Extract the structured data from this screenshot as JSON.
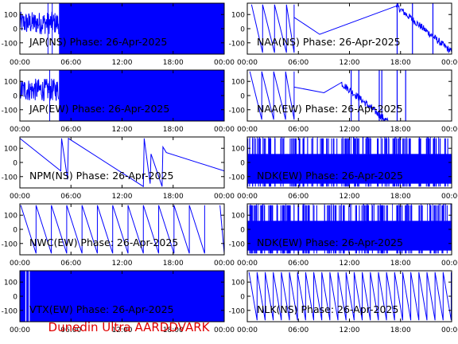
{
  "footer": "Dunedin Ultra AARDDVARK",
  "colors": {
    "trace": "#0000ff",
    "frame": "#000000",
    "label": "#000000",
    "footer": "#e00000"
  },
  "chart_data": [
    {
      "type": "line",
      "title": "JAP(NS) Phase: 26-Apr-2025",
      "ylim": [
        -180,
        180
      ],
      "yticks": [
        100,
        0,
        -100
      ],
      "xticks": [
        "00:00",
        "06:00",
        "12:00",
        "18:00",
        "00:00"
      ],
      "series": [
        {
          "name": "",
          "pattern": "noisy_then_saturated",
          "saturate_from_hour": 4.6,
          "spikes": [
            3.3,
            3.8
          ]
        }
      ]
    },
    {
      "type": "line",
      "title": "NAA(NS) Phase: 26-Apr-2025",
      "ylim": [
        -180,
        180
      ],
      "yticks": [
        100,
        0,
        -100
      ],
      "xticks": [
        "00:00",
        "06:00",
        "12:00",
        "18:00",
        "00:00"
      ],
      "series": [
        {
          "name": "",
          "pattern": "sawtooth_with_recovery",
          "wraps": [
            0.5,
            1.8,
            3.2,
            4.6
          ],
          "recovery": [
            [
              5.5,
              80
            ],
            [
              8.5,
              -40
            ],
            [
              17.5,
              160
            ]
          ],
          "tail": "noisy_decline",
          "vertical_lines": [
            17.6,
            19.4,
            21.8
          ]
        }
      ]
    },
    {
      "type": "line",
      "title": "JAP(EW) Phase: 26-Apr-2025",
      "ylim": [
        -180,
        180
      ],
      "yticks": [
        100,
        0,
        -100
      ],
      "xticks": [
        "00:00",
        "06:00",
        "12:00",
        "18:00",
        "00:00"
      ],
      "series": [
        {
          "name": "",
          "pattern": "noisy_then_saturated",
          "saturate_from_hour": 4.6,
          "spikes": [
            3.5
          ]
        }
      ]
    },
    {
      "type": "line",
      "title": "NAA(EW) Phase: 26-Apr-2025",
      "ylim": [
        -180,
        180
      ],
      "yticks": [
        100,
        0,
        -100
      ],
      "xticks": [
        "00:00",
        "06:00",
        "12:00",
        "18:00",
        "00:00"
      ],
      "series": [
        {
          "name": "",
          "pattern": "sawtooth_with_recovery",
          "wraps": [
            0.3,
            1.7,
            3.1,
            4.5
          ],
          "recovery": [
            [
              5.5,
              60
            ],
            [
              9,
              20
            ],
            [
              11,
              90
            ]
          ],
          "tail": "noisy_decline",
          "vertical_lines": [
            12.2,
            13.1,
            15.5,
            15.8,
            17.6,
            18.6
          ]
        }
      ]
    },
    {
      "type": "line",
      "title": "NPM(NS) Phase: 26-Apr-2025",
      "ylim": [
        -180,
        180
      ],
      "yticks": [
        100,
        0,
        -100
      ],
      "xticks": [
        "00:00",
        "06:00",
        "12:00",
        "18:00",
        "00:00"
      ],
      "series": [
        {
          "name": "",
          "pattern": "slow_drift",
          "points": [
            [
              0,
              170
            ],
            [
              4.8,
              -60
            ],
            [
              4.9,
              170
            ],
            [
              5.6,
              -120
            ],
            [
              5.7,
              170
            ],
            [
              14.5,
              -170
            ],
            [
              14.6,
              170
            ],
            [
              15.3,
              -150
            ],
            [
              15.4,
              60
            ],
            [
              16.7,
              -170
            ],
            [
              16.8,
              110
            ],
            [
              17.2,
              70
            ],
            [
              24,
              -60
            ]
          ]
        }
      ]
    },
    {
      "type": "line",
      "title": "NDK(EW) Phase: 26-Apr-2025",
      "ylim": [
        -180,
        180
      ],
      "yticks": [
        100,
        0,
        -100
      ],
      "xticks": [
        "00:00",
        "06:00",
        "12:00",
        "18:00",
        "00:00"
      ],
      "series": [
        {
          "name": "",
          "pattern": "dense_noise"
        }
      ]
    },
    {
      "type": "line",
      "title": "NWC(EW) Phase: 26-Apr-2025",
      "ylim": [
        -180,
        180
      ],
      "yticks": [
        100,
        0,
        -100
      ],
      "xticks": [
        "00:00",
        "06:00",
        "12:00",
        "18:00",
        "00:00"
      ],
      "series": [
        {
          "name": "",
          "pattern": "regular_sawtooth",
          "period_hours": 1.8,
          "start": 0.1,
          "gap": [
            20.5,
            21.8
          ]
        }
      ]
    },
    {
      "type": "line",
      "title": "NDK(EW) Phase: 26-Apr-2025",
      "ylim": [
        -180,
        180
      ],
      "yticks": [
        100,
        0,
        -100
      ],
      "xticks": [
        "00:00",
        "06:00",
        "12:00",
        "18:00",
        "00:00"
      ],
      "series": [
        {
          "name": "",
          "pattern": "dense_noise"
        }
      ]
    },
    {
      "type": "line",
      "title": "VTX(EW) Phase: 26-Apr-2025",
      "ylim": [
        -180,
        180
      ],
      "yticks": [
        100,
        0,
        -100
      ],
      "xticks": [
        "00:00",
        "06:00",
        "12:00",
        "18:00",
        "00:00"
      ],
      "series": [
        {
          "name": "",
          "pattern": "saturated",
          "spikes": [
            0.7,
            1.1
          ]
        }
      ]
    },
    {
      "type": "line",
      "title": "NLK(NS) Phase: 26-Apr-2025",
      "ylim": [
        -180,
        180
      ],
      "yticks": [
        100,
        0,
        -100
      ],
      "xticks": [
        "00:00",
        "06:00",
        "12:00",
        "18:00",
        "00:00"
      ],
      "series": [
        {
          "name": "",
          "pattern": "regular_sawtooth",
          "period_hours": 0.95,
          "start": 0.2,
          "gap": []
        }
      ]
    }
  ]
}
